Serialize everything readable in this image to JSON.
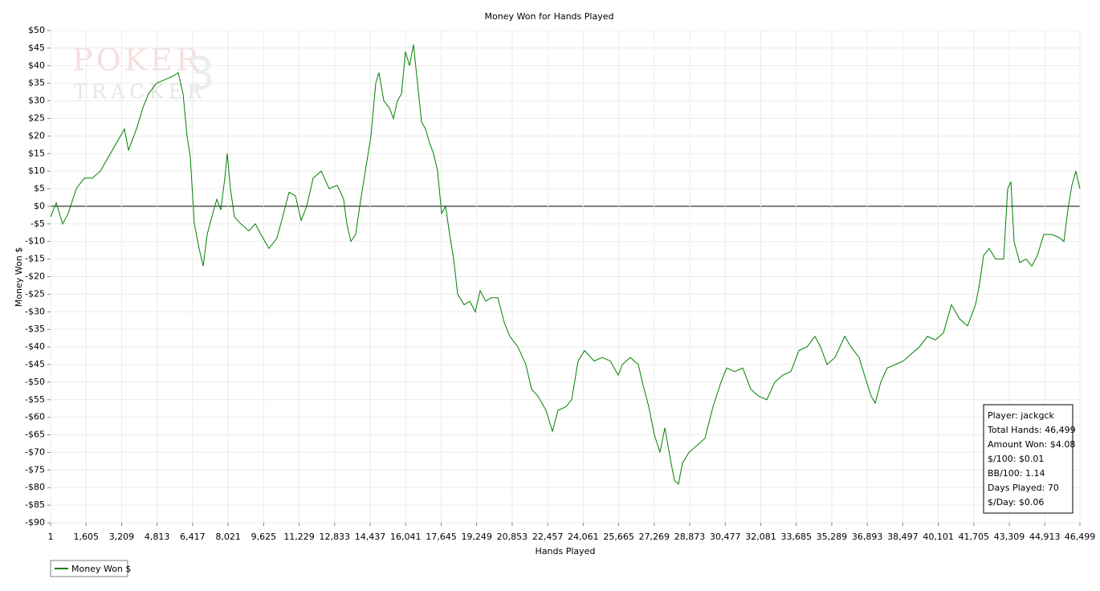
{
  "chart_data": {
    "type": "line",
    "title": "Money Won for Hands Played",
    "xlabel": "Hands Played",
    "ylabel": "Money Won $",
    "watermark": [
      "POKER",
      "TRACKER",
      "3"
    ],
    "grid": true,
    "legend": "bottom-left",
    "x": [
      1,
      255,
      545,
      799,
      1162,
      1524,
      1887,
      2250,
      2794,
      3156,
      3338,
      3519,
      3882,
      4172,
      4426,
      4789,
      5151,
      5514,
      5768,
      5986,
      6167,
      6312,
      6494,
      6711,
      6893,
      7074,
      7328,
      7509,
      7691,
      7872,
      7981,
      8126,
      8308,
      8598,
      8961,
      9250,
      9504,
      9867,
      10230,
      10484,
      10774,
      11064,
      11318,
      11572,
      11862,
      12225,
      12587,
      12950,
      13240,
      13385,
      13567,
      13784,
      13966,
      14220,
      14473,
      14691,
      14836,
      15054,
      15308,
      15489,
      15670,
      15852,
      16033,
      16214,
      16396,
      16577,
      16759,
      16940,
      17120,
      17302,
      17483,
      17665,
      17846,
      18027,
      18209,
      18390,
      18680,
      18934,
      19188,
      19405,
      19659,
      19913,
      20203,
      20493,
      20746,
      21109,
      21472,
      21726,
      22016,
      22378,
      22669,
      22922,
      23285,
      23539,
      23829,
      24119,
      24554,
      24917,
      25280,
      25643,
      25824,
      26187,
      26550,
      26731,
      27021,
      27275,
      27529,
      27747,
      28001,
      28182,
      28364,
      28545,
      28835,
      29198,
      29561,
      29923,
      30286,
      30540,
      30902,
      31265,
      31628,
      31991,
      32353,
      32716,
      33079,
      33441,
      33804,
      34167,
      34529,
      34783,
      35074,
      35436,
      35871,
      36162,
      36524,
      36815,
      37068,
      37250,
      37504,
      37794,
      38156,
      38519,
      38882,
      39244,
      39607,
      39970,
      40333,
      40695,
      41058,
      41420,
      41783,
      41965,
      42146,
      42400,
      42690,
      43053,
      43234,
      43379,
      43524,
      43778,
      44068,
      44322,
      44576,
      44866,
      45228,
      45591,
      45772,
      45954,
      46135,
      46316,
      46499
    ],
    "series": [
      {
        "name": "Money Won $",
        "color": "#008000",
        "values": [
          -3,
          1,
          -5,
          -2,
          5,
          8,
          8,
          10,
          16,
          20,
          22,
          16,
          22,
          28,
          32,
          35,
          36,
          37,
          38,
          32,
          20,
          14,
          -5,
          -12,
          -17,
          -8,
          -2,
          2,
          -1,
          8,
          15,
          5,
          -3,
          -5,
          -7,
          -5,
          -8,
          -12,
          -9,
          -3,
          4,
          3,
          -4,
          0,
          8,
          10,
          5,
          6,
          2,
          -5,
          -10,
          -8,
          0,
          10,
          20,
          35,
          38,
          30,
          28,
          25,
          30,
          32,
          44,
          40,
          46,
          35,
          24,
          22,
          18,
          15,
          10,
          -2,
          0,
          -8,
          -15,
          -25,
          -28,
          -27,
          -30,
          -24,
          -27,
          -26,
          -26,
          -33,
          -37,
          -40,
          -45,
          -52,
          -54,
          -58,
          -64,
          -58,
          -57,
          -55,
          -44,
          -41,
          -44,
          -43,
          -44,
          -48,
          -45,
          -43,
          -45,
          -50,
          -57,
          -65,
          -70,
          -63,
          -72,
          -78,
          -79,
          -73,
          -70,
          -68,
          -66,
          -57,
          -50,
          -46,
          -47,
          -46,
          -52,
          -54,
          -55,
          -50,
          -48,
          -47,
          -41,
          -40,
          -37,
          -40,
          -45,
          -43,
          -37,
          -40,
          -43,
          -49,
          -54,
          -56,
          -50,
          -46,
          -45,
          -44,
          -42,
          -40,
          -37,
          -38,
          -36,
          -28,
          -32,
          -34,
          -28,
          -22,
          -14,
          -12,
          -15,
          -15,
          5,
          7,
          -10,
          -16,
          -15,
          -17,
          -14,
          -8,
          -8,
          -9,
          -10,
          -1,
          6,
          10,
          5
        ]
      }
    ],
    "xlim": [
      1,
      46499
    ],
    "xticks": [
      1,
      {
        "value": 1605,
        "label": "1,605"
      },
      {
        "value": 3209,
        "label": "3,209"
      },
      {
        "value": 4813,
        "label": "4,813"
      },
      {
        "value": 6417,
        "label": "6,417"
      },
      {
        "value": 8021,
        "label": "8,021"
      },
      {
        "value": 9625,
        "label": "9,625"
      },
      {
        "value": 11229,
        "label": "11,229"
      },
      {
        "value": 12833,
        "label": "12,833"
      },
      {
        "value": 14437,
        "label": "14,437"
      },
      {
        "value": 16041,
        "label": "16,041"
      },
      {
        "value": 17645,
        "label": "17,645"
      },
      {
        "value": 19249,
        "label": "19,249"
      },
      {
        "value": 20853,
        "label": "20,853"
      },
      {
        "value": 22457,
        "label": "22,457"
      },
      {
        "value": 24061,
        "label": "24,061"
      },
      {
        "value": 25665,
        "label": "25,665"
      },
      {
        "value": 27269,
        "label": "27,269"
      },
      {
        "value": 28873,
        "label": "28,873"
      },
      {
        "value": 30477,
        "label": "30,477"
      },
      {
        "value": 32081,
        "label": "32,081"
      },
      {
        "value": 33685,
        "label": "33,685"
      },
      {
        "value": 35289,
        "label": "35,289"
      },
      {
        "value": 36893,
        "label": "36,893"
      },
      {
        "value": 38497,
        "label": "38,497"
      },
      {
        "value": 40101,
        "label": "40,101"
      },
      {
        "value": 41705,
        "label": "41,705"
      },
      {
        "value": 43309,
        "label": "43,309"
      },
      {
        "value": 44913,
        "label": "44,913"
      },
      {
        "value": 46499,
        "label": "46,499"
      }
    ],
    "ylim": [
      -90,
      50
    ],
    "yticks": [
      {
        "value": -90,
        "label": "-$90"
      },
      {
        "value": -85,
        "label": "-$85"
      },
      {
        "value": -80,
        "label": "-$80"
      },
      {
        "value": -75,
        "label": "-$75"
      },
      {
        "value": -70,
        "label": "-$70"
      },
      {
        "value": -65,
        "label": "-$65"
      },
      {
        "value": -60,
        "label": "-$60"
      },
      {
        "value": -55,
        "label": "-$55"
      },
      {
        "value": -50,
        "label": "-$50"
      },
      {
        "value": -45,
        "label": "-$45"
      },
      {
        "value": -40,
        "label": "-$40"
      },
      {
        "value": -35,
        "label": "-$35"
      },
      {
        "value": -30,
        "label": "-$30"
      },
      {
        "value": -25,
        "label": "-$25"
      },
      {
        "value": -20,
        "label": "-$20"
      },
      {
        "value": -15,
        "label": "-$15"
      },
      {
        "value": -10,
        "label": "-$10"
      },
      {
        "value": -5,
        "label": "-$5"
      },
      {
        "value": 0,
        "label": "$0"
      },
      {
        "value": 5,
        "label": "$5"
      },
      {
        "value": 10,
        "label": "$10"
      },
      {
        "value": 15,
        "label": "$15"
      },
      {
        "value": 20,
        "label": "$20"
      },
      {
        "value": 25,
        "label": "$25"
      },
      {
        "value": 30,
        "label": "$30"
      },
      {
        "value": 35,
        "label": "$35"
      },
      {
        "value": 40,
        "label": "$40"
      },
      {
        "value": 45,
        "label": "$45"
      },
      {
        "value": 50,
        "label": "$50"
      }
    ],
    "annotations": [
      "Player: jackgck",
      "Total Hands: 46,499",
      "Amount Won: $4.08",
      "$/100: $0.01",
      "BB/100: 1.14",
      "Days Played: 70",
      "$/Day: $0.06"
    ]
  }
}
